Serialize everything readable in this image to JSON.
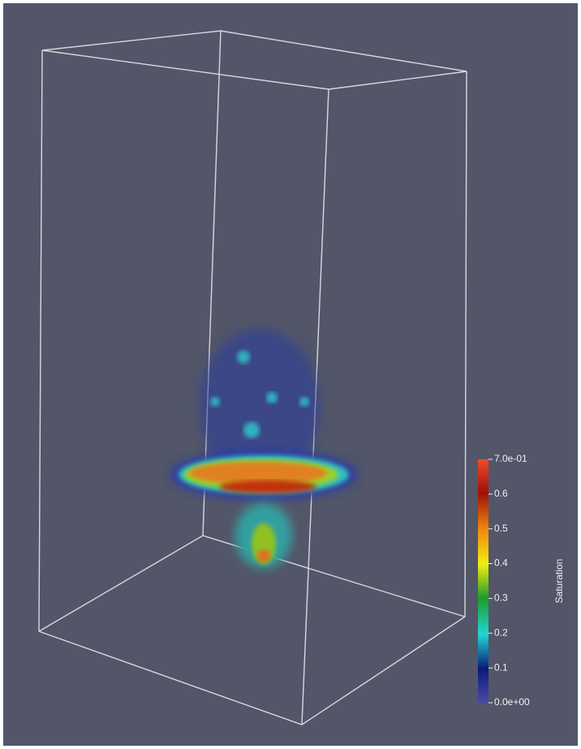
{
  "colorbar": {
    "title": "Saturation",
    "range": [
      0,
      0.7
    ],
    "ticks": [
      {
        "value": 0.7,
        "label": "7.0e-01"
      },
      0.6,
      0.5,
      0.4,
      0.3,
      0.2,
      0.1,
      {
        "value": 0,
        "label": "0.0e+00"
      }
    ]
  }
}
